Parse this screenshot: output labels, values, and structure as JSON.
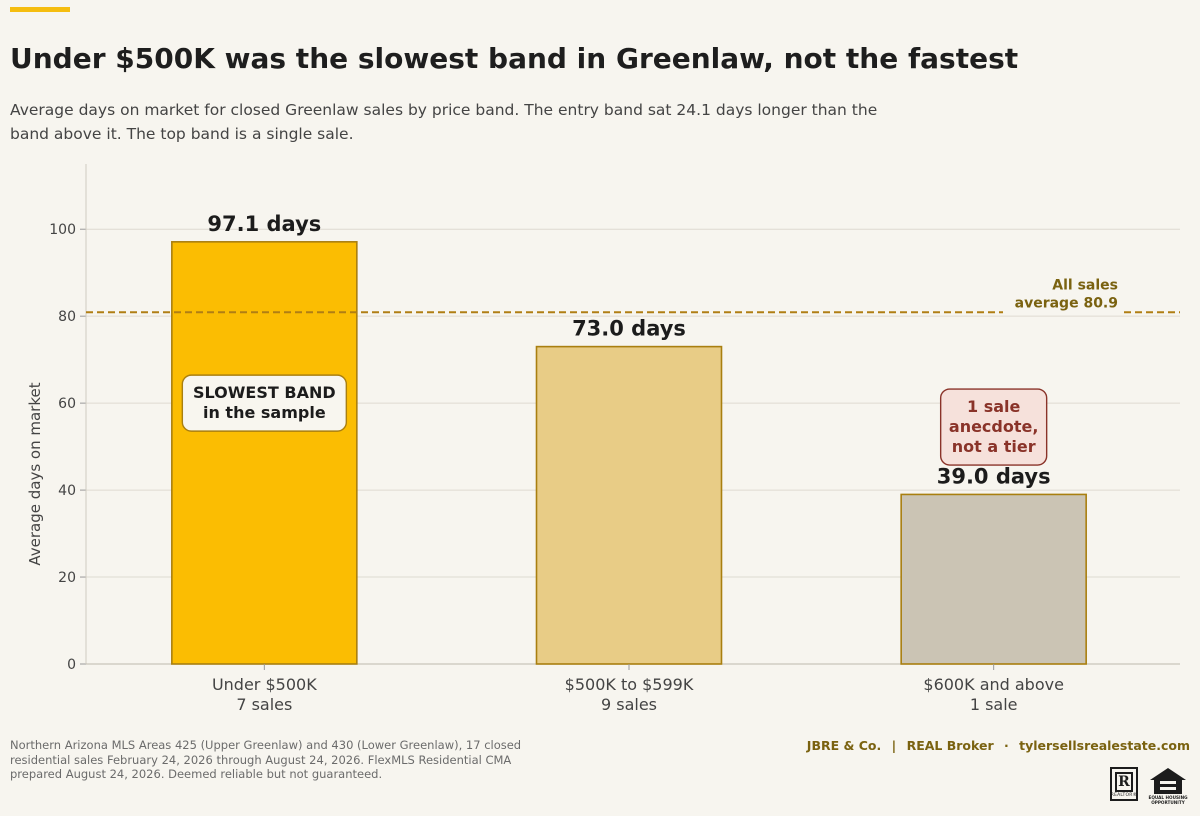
{
  "header": {
    "title": "Under $500K was the slowest band in Greenlaw, not the fastest",
    "subtitle": "Average days on market for closed Greenlaw sales by price band. The entry band sat 24.1 days longer than the band above it. The top band is a single sale."
  },
  "chart_data": {
    "type": "bar",
    "categories": [
      "Under $500K",
      "$500K to $599K",
      "$600K and above"
    ],
    "category_counts": [
      "7 sales",
      "9 sales",
      "1 sale"
    ],
    "values": [
      97.1,
      73.0,
      39.0
    ],
    "data_labels": [
      "97.1 days",
      "73.0 days",
      "39.0 days"
    ],
    "ylabel": "Average days on market",
    "ylim": [
      0,
      115
    ],
    "yticks": [
      0,
      20,
      40,
      60,
      80,
      100
    ],
    "grid": "horizontal",
    "colors": [
      "#fbbd02",
      "#e8cc86",
      "#cbc4b4"
    ],
    "bar_edge_color": "#a97f10",
    "reference_line": {
      "value": 80.9,
      "label_lines": [
        "All sales",
        "average 80.9"
      ],
      "color": "#b07e14"
    },
    "annotations": [
      {
        "bar": 0,
        "at": 60,
        "lines": [
          "SLOWEST BAND",
          "in the sample"
        ],
        "fill": "#f8f6ef",
        "stroke": "#a97f10",
        "text_color": "#1c1c1c"
      },
      {
        "bar": 2,
        "at": 54.5,
        "lines": [
          "1 sale",
          "anecdote,",
          "not a tier"
        ],
        "fill": "#f6e1db",
        "stroke": "#8a3329",
        "text_color": "#8a3329"
      }
    ]
  },
  "footer": {
    "source": "Northern Arizona MLS Areas 425 (Upper Greenlaw) and 430 (Lower Greenlaw), 17 closed residential sales February 24, 2026 through August 24, 2026. FlexMLS Residential CMA prepared August 24, 2026. Deemed reliable but not guaranteed.",
    "brand_name": "JBRE & Co.",
    "brand_sep": "|",
    "brokerage": "REAL Broker",
    "dot": "·",
    "website": "tylersellsrealestate.com",
    "realtor_letter": "R",
    "realtor_word": "REALTOR®",
    "eho_lines": [
      "EQUAL HOUSING",
      "OPPORTUNITY"
    ]
  }
}
